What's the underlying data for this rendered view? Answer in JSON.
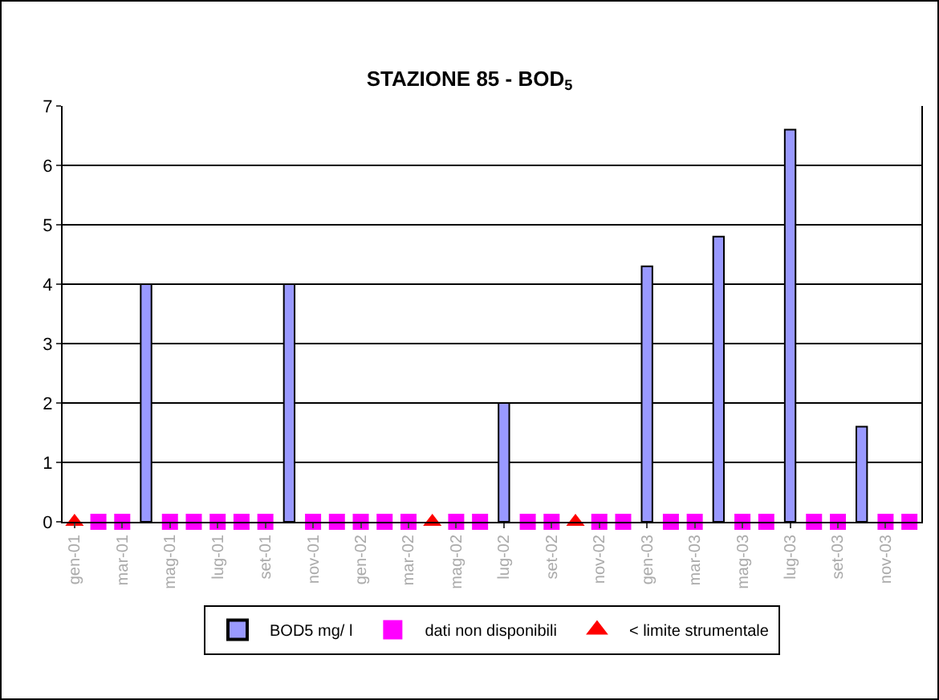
{
  "chart_data": {
    "type": "bar",
    "title": "STAZIONE 85 - BOD$_{5}$",
    "categories": [
      "gen-01",
      null,
      "mar-01",
      null,
      "mag-01",
      null,
      "lug-01",
      null,
      "set-01",
      null,
      "nov-01",
      null,
      "gen-02",
      null,
      "mar-02",
      null,
      "mag-02",
      null,
      "lug-02",
      null,
      "set-02",
      null,
      "nov-02",
      null,
      "gen-03",
      null,
      "mar-03",
      null,
      "mag-03",
      null,
      "lug-03",
      null,
      "set-03",
      null,
      "nov-03",
      null
    ],
    "series": [
      {
        "name": "BOD5 mg/ l",
        "color": "#9999ff",
        "values": [
          null,
          null,
          null,
          4,
          null,
          null,
          null,
          null,
          null,
          4,
          null,
          null,
          null,
          null,
          null,
          null,
          null,
          null,
          2,
          null,
          null,
          null,
          null,
          null,
          4.3,
          null,
          null,
          4.8,
          null,
          null,
          6.6,
          null,
          null,
          1.6,
          null,
          null
        ]
      },
      {
        "name": "dati non disponibili",
        "type": "scatter",
        "marker": "square",
        "color": "#ff00ff",
        "values": [
          null,
          0,
          0,
          null,
          0,
          0,
          0,
          0,
          0,
          null,
          0,
          0,
          0,
          0,
          0,
          null,
          0,
          0,
          null,
          0,
          0,
          null,
          0,
          0,
          null,
          0,
          0,
          null,
          0,
          0,
          null,
          0,
          0,
          null,
          0,
          0
        ]
      },
      {
        "name": "< limite strumentale",
        "type": "scatter",
        "marker": "triangle",
        "color": "#ff0000",
        "values": [
          0,
          null,
          null,
          null,
          null,
          null,
          null,
          null,
          null,
          null,
          null,
          null,
          null,
          null,
          null,
          0,
          null,
          null,
          null,
          null,
          null,
          0,
          null,
          null,
          null,
          null,
          null,
          null,
          null,
          null,
          null,
          null,
          null,
          null,
          null,
          null
        ]
      }
    ],
    "ylim": [
      0,
      7
    ],
    "yticks": [
      0,
      1,
      2,
      3,
      4,
      5,
      6,
      7
    ],
    "grid": "y",
    "legend": "bottom"
  }
}
